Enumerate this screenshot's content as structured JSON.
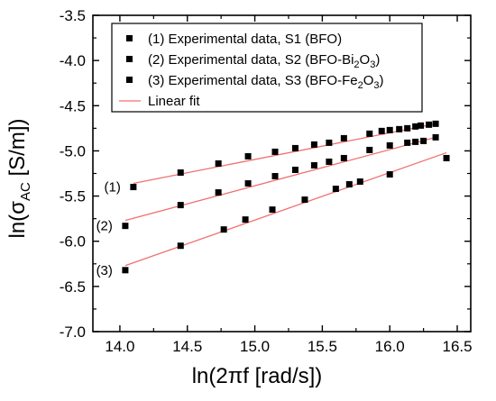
{
  "chart_data": {
    "type": "scatter",
    "title": "",
    "xlabel": "ln(2πf [rad/s])",
    "ylabel": "ln(σAC [S/m])",
    "ylabel_parts": {
      "pre": "ln(σ",
      "sub": "AC",
      "post": " [S/m])"
    },
    "xlim": [
      13.8,
      16.6
    ],
    "ylim": [
      -7.0,
      -3.5
    ],
    "xticks": [
      "14.0",
      "14.5",
      "15.0",
      "15.5",
      "16.0",
      "16.5"
    ],
    "xtick_values": [
      14.0,
      14.5,
      15.0,
      15.5,
      16.0,
      16.5
    ],
    "yticks": [
      "-3.5",
      "-4.0",
      "-4.5",
      "-5.0",
      "-5.5",
      "-6.0",
      "-6.5",
      "-7.0"
    ],
    "ytick_values": [
      -3.5,
      -4.0,
      -4.5,
      -5.0,
      -5.5,
      -6.0,
      -6.5,
      -7.0
    ],
    "grid": false,
    "legend_position": "top-right",
    "series": [
      {
        "name": "(1) Experimental data, S1 (BFO)",
        "legend_parts": {
          "pre": "(1) Experimental data, S1 (BFO)",
          "sub": "",
          "mid": "",
          "sub2": "",
          "post": ""
        },
        "label": "(1)",
        "color": "#000000",
        "x": [
          14.1,
          14.45,
          14.73,
          14.95,
          15.15,
          15.3,
          15.44,
          15.55,
          15.66,
          15.85,
          15.94,
          16.0,
          16.07,
          16.13,
          16.19,
          16.23,
          16.29,
          16.34,
          16.42
        ],
        "y": [
          -5.4,
          -5.24,
          -5.14,
          -5.06,
          -5.01,
          -4.97,
          -4.93,
          -4.91,
          -4.86,
          -4.81,
          -4.78,
          -4.77,
          -4.76,
          -4.75,
          -4.73,
          -4.72,
          -4.71,
          -4.7,
          -5.08
        ]
      },
      {
        "name": "(2) Experimental data, S2 (BFO-Bi2O3)",
        "legend_parts": {
          "pre": "(2) Experimental data, S2 (BFO-Bi",
          "sub": "2",
          "mid": "O",
          "sub2": "3",
          "post": ")"
        },
        "label": "(2)",
        "color": "#000000",
        "x": [
          14.04,
          14.45,
          14.73,
          14.95,
          15.15,
          15.3,
          15.44,
          15.55,
          15.66,
          15.85,
          16.0,
          16.13,
          16.19,
          16.25,
          16.34
        ],
        "y": [
          -5.83,
          -5.6,
          -5.46,
          -5.36,
          -5.28,
          -5.21,
          -5.16,
          -5.12,
          -5.08,
          -4.99,
          -4.94,
          -4.91,
          -4.9,
          -4.89,
          -4.85
        ]
      },
      {
        "name": "(3) Experimental data, S3 (BFO-Fe2O3)",
        "legend_parts": {
          "pre": "(3) Experimental data, S3 (BFO-Fe",
          "sub": "2",
          "mid": "O",
          "sub2": "3",
          "post": ")"
        },
        "label": "(3)",
        "color": "#000000",
        "x": [
          14.04,
          14.45,
          14.77,
          14.93,
          15.13,
          15.37,
          15.6,
          15.7,
          15.78,
          16.0
        ],
        "y": [
          -6.32,
          -6.05,
          -5.87,
          -5.76,
          -5.65,
          -5.54,
          -5.42,
          -5.37,
          -5.34,
          -5.26
        ]
      }
    ],
    "fits": [
      {
        "name": "Linear fit",
        "color": "#f07070",
        "x": [
          14.1,
          16.34
        ],
        "y": [
          -5.36,
          -4.7
        ]
      },
      {
        "color": "#f07070",
        "x": [
          14.04,
          16.34
        ],
        "y": [
          -5.77,
          -4.85
        ]
      },
      {
        "color": "#f07070",
        "x": [
          14.04,
          16.42
        ],
        "y": [
          -6.27,
          -5.02
        ]
      }
    ]
  }
}
